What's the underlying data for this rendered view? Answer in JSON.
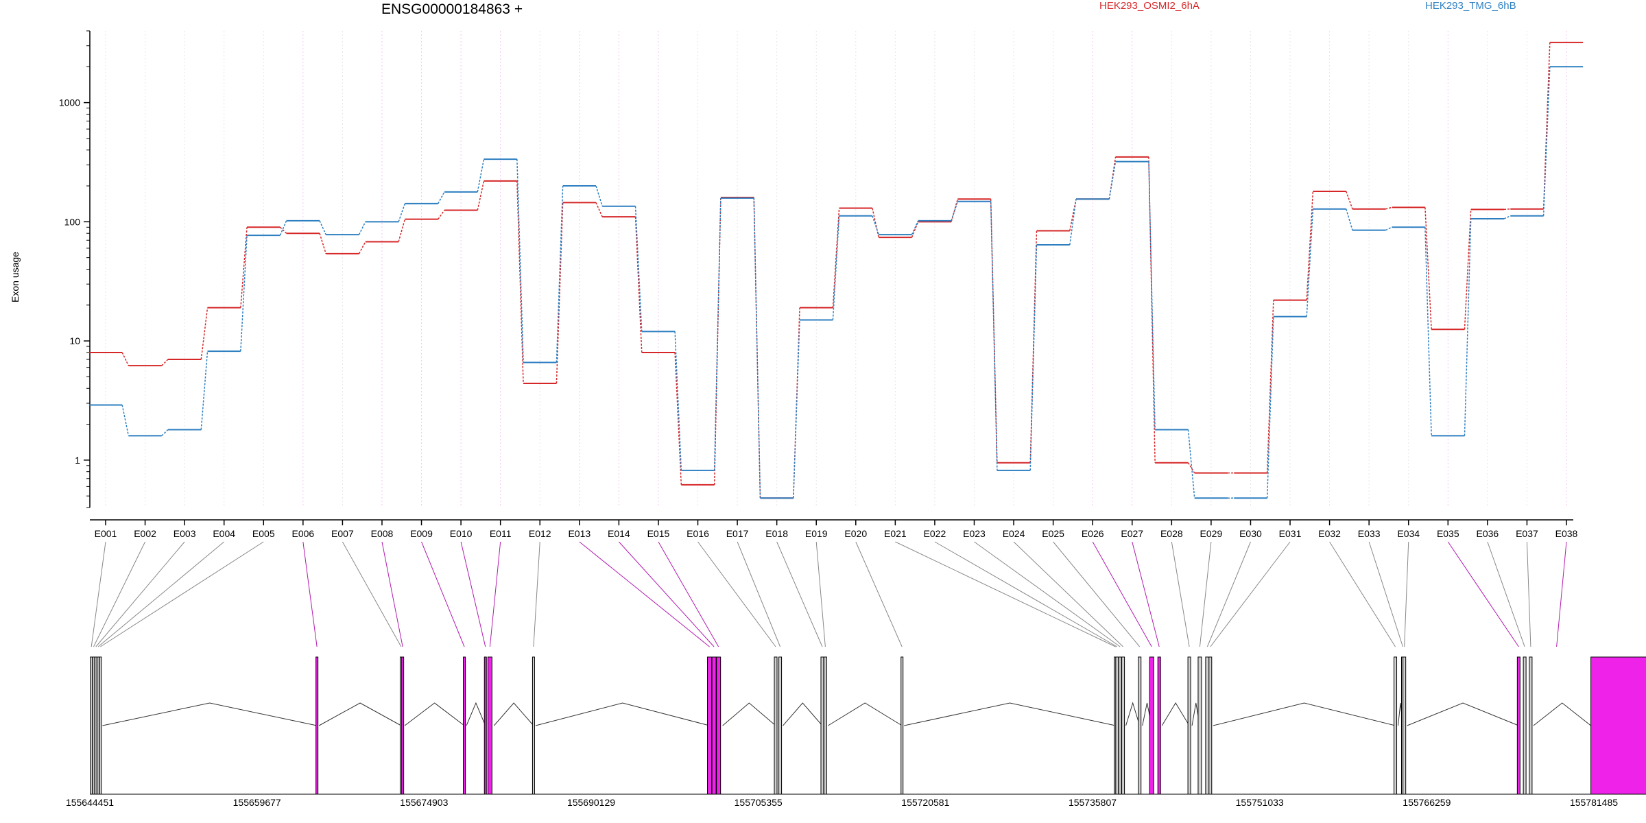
{
  "chart_data": {
    "type": "line",
    "title": "ENSG00000184863 +",
    "ylabel": "Exon usage",
    "yscale": "log",
    "ylim": [
      0.4,
      4000
    ],
    "yticks": [
      1,
      10,
      100,
      1000
    ],
    "ytick_labels": [
      "1",
      "10",
      "100",
      "1000"
    ],
    "legend_placement": "top",
    "categories": [
      "E001",
      "E002",
      "E003",
      "E004",
      "E005",
      "E006",
      "E007",
      "E008",
      "E009",
      "E010",
      "E011",
      "E012",
      "E013",
      "E014",
      "E015",
      "E016",
      "E017",
      "E018",
      "E019",
      "E020",
      "E021",
      "E022",
      "E023",
      "E024",
      "E025",
      "E026",
      "E027",
      "E028",
      "E029",
      "E030",
      "E031",
      "E032",
      "E033",
      "E034",
      "E035",
      "E036",
      "E037",
      "E038"
    ],
    "series": [
      {
        "name": "HEK293_OSMI2_6hA",
        "color": "#d62728",
        "values": [
          8,
          6.2,
          7,
          19,
          90,
          80,
          54,
          68,
          105,
          125,
          220,
          4.4,
          145,
          110,
          8,
          0.62,
          160,
          0.48,
          19,
          130,
          74,
          100,
          155,
          0.95,
          84,
          155,
          350,
          0.95,
          0.78,
          0.78,
          22,
          180,
          128,
          132,
          12.5,
          127,
          128,
          3200
        ]
      },
      {
        "name": "HEK293_TMG_6hB",
        "color": "#2d7fc1",
        "values": [
          2.9,
          1.6,
          1.8,
          8.2,
          77,
          102,
          78,
          100,
          142,
          178,
          335,
          6.6,
          200,
          135,
          12,
          0.82,
          158,
          0.48,
          15,
          112,
          78,
          102,
          148,
          0.82,
          64,
          155,
          320,
          1.8,
          0.48,
          0.48,
          16,
          128,
          85,
          90,
          1.6,
          106,
          112,
          2000
        ]
      }
    ],
    "purple_exons": [
      "E006",
      "E008",
      "E009",
      "E010",
      "E011",
      "E013",
      "E014",
      "E015",
      "E026",
      "E027",
      "E035",
      "E038"
    ],
    "genomic_ticks": [
      "155644451",
      "155659677",
      "155674903",
      "155690129",
      "155705355",
      "155720581",
      "155735807",
      "155751033",
      "155766259",
      "155781485"
    ],
    "gene_track": {
      "highlight_color": "#ee22e8",
      "neutral_color": "#d0d0d0"
    }
  }
}
